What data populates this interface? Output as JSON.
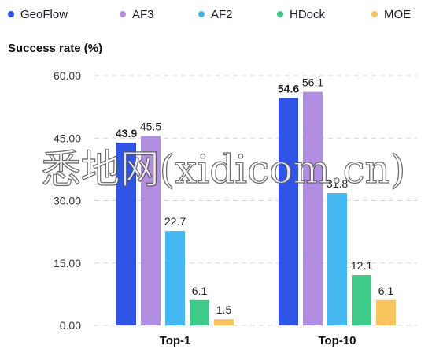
{
  "chart_data": {
    "type": "bar",
    "title": "",
    "ylabel": "Success rate (%)",
    "xlabel": "",
    "categories": [
      "Top-1",
      "Top-10"
    ],
    "series": [
      {
        "name": "GeoFlow",
        "color": "#2f55e6",
        "values": [
          43.9,
          54.6
        ],
        "labels": [
          "43.9",
          "54.6"
        ]
      },
      {
        "name": "AF3",
        "color": "#b28ee3",
        "values": [
          45.5,
          56.1
        ],
        "labels": [
          "45.5",
          "56.1"
        ]
      },
      {
        "name": "AF2",
        "color": "#45b8f2",
        "values": [
          22.7,
          31.8
        ],
        "labels": [
          "22.7",
          "31.8"
        ]
      },
      {
        "name": "HDock",
        "color": "#3ecb8a",
        "values": [
          6.1,
          12.1
        ],
        "labels": [
          "6.1",
          "12.1"
        ]
      },
      {
        "name": "MOE",
        "color": "#f8c45c",
        "values": [
          1.5,
          6.1
        ],
        "labels": [
          "1.5",
          "6.1"
        ]
      }
    ],
    "yticks": [
      "0.00",
      "15.00",
      "30.00",
      "45.00",
      "60.00"
    ],
    "ylim": [
      0,
      60
    ],
    "grid": true,
    "legend_position": "top"
  },
  "watermark": "悉地网(xidicom.cn)"
}
